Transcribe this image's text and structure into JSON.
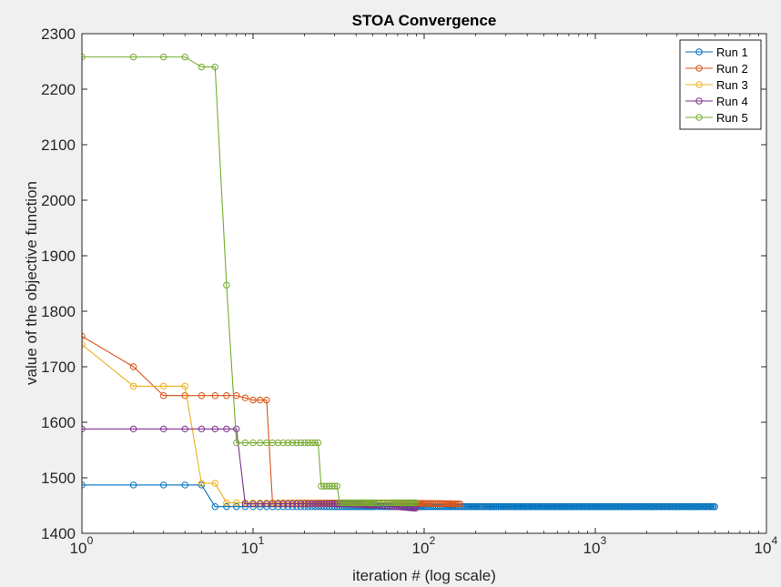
{
  "chart_data": {
    "type": "line",
    "title": "STOA Convergence",
    "xlabel": "iteration # (log scale)",
    "ylabel": "value of the objective function",
    "xscale": "log",
    "xlim": [
      1,
      10000
    ],
    "ylim": [
      1400,
      2300
    ],
    "xticks": [
      1,
      10,
      100,
      1000,
      10000
    ],
    "xtick_labels": [
      {
        "base": "10",
        "exp": "0"
      },
      {
        "base": "10",
        "exp": "1"
      },
      {
        "base": "10",
        "exp": "2"
      },
      {
        "base": "10",
        "exp": "3"
      },
      {
        "base": "10",
        "exp": "4"
      }
    ],
    "yticks": [
      1400,
      1500,
      1600,
      1700,
      1800,
      1900,
      2000,
      2100,
      2200,
      2300
    ],
    "grid": false,
    "legend_position": "top-right",
    "series": [
      {
        "name": "Run 1",
        "color": "#0072BD",
        "segments": [
          [
            1,
            1487
          ],
          [
            4,
            1487
          ],
          [
            5,
            1487
          ],
          [
            6,
            1448
          ],
          [
            5000,
            1448
          ]
        ]
      },
      {
        "name": "Run 2",
        "color": "#D95319",
        "segments": [
          [
            1,
            1755
          ],
          [
            2,
            1700
          ],
          [
            3,
            1648
          ],
          [
            8,
            1648
          ],
          [
            10,
            1640
          ],
          [
            12,
            1640
          ],
          [
            13,
            1455
          ],
          [
            165,
            1453
          ]
        ]
      },
      {
        "name": "Run 3",
        "color": "#EDB120",
        "segments": [
          [
            1,
            1740
          ],
          [
            2,
            1665
          ],
          [
            4,
            1665
          ],
          [
            5,
            1490
          ],
          [
            6,
            1490
          ],
          [
            7,
            1455
          ],
          [
            50,
            1452
          ]
        ]
      },
      {
        "name": "Run 4",
        "color": "#7E2F8E",
        "segments": [
          [
            1,
            1588
          ],
          [
            8,
            1588
          ],
          [
            9,
            1453
          ],
          [
            35,
            1453
          ],
          [
            90,
            1445
          ]
        ]
      },
      {
        "name": "Run 5",
        "color": "#77AC30",
        "segments": [
          [
            1,
            2258
          ],
          [
            4,
            2258
          ],
          [
            5,
            2240
          ],
          [
            6,
            2240
          ],
          [
            7,
            1847
          ],
          [
            8,
            1563
          ],
          [
            24,
            1563
          ],
          [
            25,
            1485
          ],
          [
            31,
            1485
          ],
          [
            32,
            1455
          ],
          [
            90,
            1455
          ]
        ]
      }
    ]
  }
}
